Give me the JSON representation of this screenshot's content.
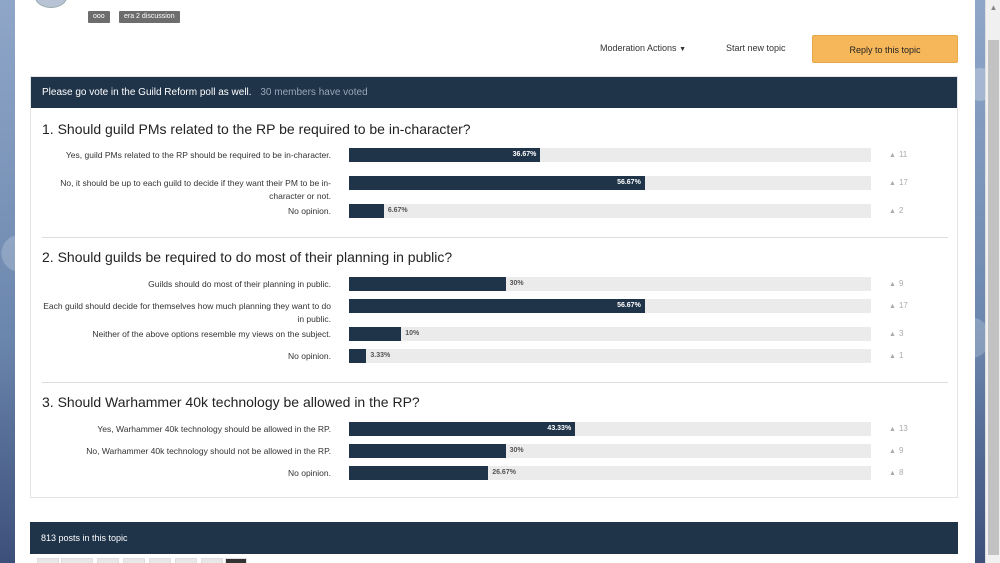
{
  "topic": {
    "tags": [
      "ooo",
      "era 2 discussion"
    ]
  },
  "actions": {
    "moderation": "Moderation Actions",
    "start_new": "Start new topic",
    "reply": "Reply to this topic"
  },
  "poll": {
    "title": "Please go vote in the Guild Reform poll as well.",
    "votes": "30 members have voted",
    "questions": [
      {
        "title": "1. Should guild PMs related to the RP be required to be in-character?",
        "options": [
          {
            "label": "Yes, guild PMs related to the RP should be required to be in-character.",
            "percent_label": "36.67%",
            "count": "11",
            "fraction": 0.3667
          },
          {
            "label": "No, it should be up to each guild to decide if they want their PM to be in-character or not.",
            "percent_label": "56.67%",
            "count": "17",
            "fraction": 0.5667
          },
          {
            "label": "No opinion.",
            "percent_label": "6.67%",
            "count": "2",
            "fraction": 0.0667
          }
        ]
      },
      {
        "title": "2. Should guilds be required to do most of their planning in public?",
        "options": [
          {
            "label": "Guilds should do most of their planning in public.",
            "percent_label": "30%",
            "count": "9",
            "fraction": 0.3
          },
          {
            "label": "Each guild should decide for themselves how much planning they want to do in public.",
            "percent_label": "56.67%",
            "count": "17",
            "fraction": 0.5667
          },
          {
            "label": "Neither of the above options resemble my views on the subject.",
            "percent_label": "10%",
            "count": "3",
            "fraction": 0.1
          },
          {
            "label": "No opinion.",
            "percent_label": "3.33%",
            "count": "1",
            "fraction": 0.0333
          }
        ]
      },
      {
        "title": "3. Should Warhammer 40k technology be allowed in the RP?",
        "options": [
          {
            "label": "Yes, Warhammer 40k technology should be allowed in the RP.",
            "percent_label": "43.33%",
            "count": "13",
            "fraction": 0.4333
          },
          {
            "label": "No, Warhammer 40k technology should not be allowed in the RP.",
            "percent_label": "30%",
            "count": "9",
            "fraction": 0.3
          },
          {
            "label": "No opinion.",
            "percent_label": "26.67%",
            "count": "8",
            "fraction": 0.2667
          }
        ]
      }
    ]
  },
  "posts": {
    "count_label": "813 posts in this topic"
  },
  "colors": {
    "header_bg": "#1f3349",
    "bar_fill": "#1f3349",
    "bar_track": "#ebebeb",
    "reply_button": "#f6b75a"
  },
  "icons": {
    "voter_count": "user-icon",
    "moderation_dropdown": "caret-down-icon"
  }
}
